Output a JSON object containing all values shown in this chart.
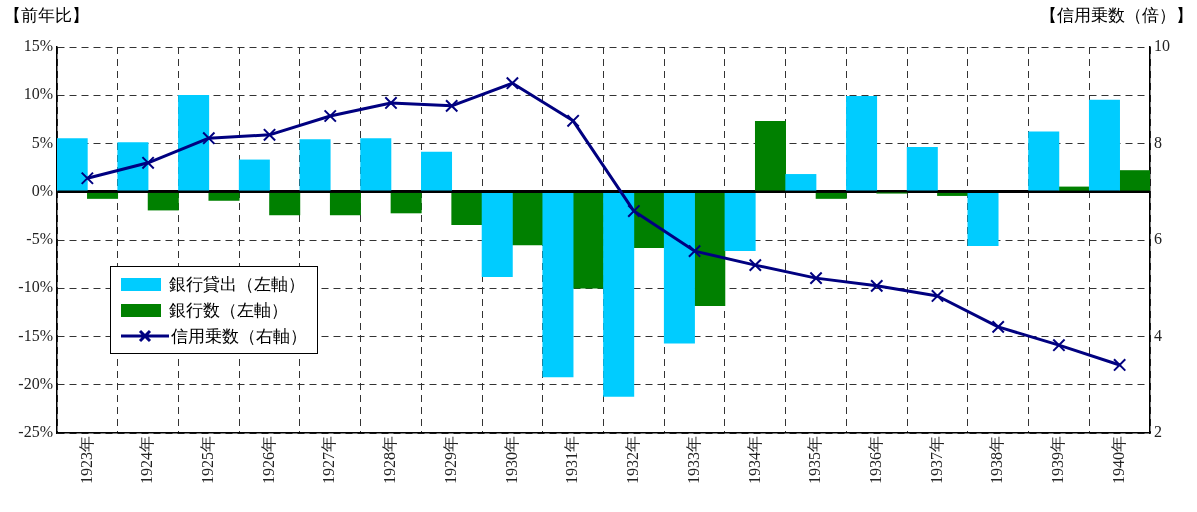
{
  "chart_data": {
    "type": "bar",
    "ylabel": "【前年比】",
    "y2label": "【信用乗数（倍）】",
    "categories": [
      "1923年",
      "1924年",
      "1925年",
      "1926年",
      "1927年",
      "1928年",
      "1929年",
      "1930年",
      "1931年",
      "1932年",
      "1933年",
      "1934年",
      "1935年",
      "1936年",
      "1937年",
      "1938年",
      "1939年",
      "1940年"
    ],
    "series": [
      {
        "name": "銀行貸出（左軸）",
        "color": "#00ccff",
        "values": [
          5.5,
          5.1,
          10.0,
          3.3,
          5.4,
          5.5,
          4.1,
          -8.8,
          -19.2,
          -21.2,
          -15.7,
          -6.1,
          1.8,
          9.9,
          4.6,
          -5.6,
          6.2,
          9.5
        ]
      },
      {
        "name": "銀行数（左軸）",
        "color": "#008000",
        "values": [
          -0.7,
          -1.9,
          -0.9,
          -2.4,
          -2.4,
          -2.2,
          -3.4,
          -5.5,
          -10.0,
          -5.8,
          -11.8,
          7.3,
          -0.7,
          -0.1,
          -0.4,
          null,
          0.5,
          2.2
        ]
      },
      {
        "name": "信用乗数（右軸）",
        "type": "line",
        "axis": "y2",
        "color": "#000080",
        "values": [
          7.28,
          7.6,
          8.11,
          8.18,
          8.57,
          8.84,
          8.78,
          9.25,
          8.47,
          6.6,
          5.77,
          5.48,
          5.21,
          5.05,
          4.84,
          4.2,
          3.82,
          3.41
        ]
      }
    ],
    "ylim": [
      -25,
      15
    ],
    "yticks": [
      {
        "value": -25,
        "label": "-25%"
      },
      {
        "value": -20,
        "label": "-20%"
      },
      {
        "value": -15,
        "label": "-15%"
      },
      {
        "value": -10,
        "label": "-10%"
      },
      {
        "value": -5,
        "label": "-5%"
      },
      {
        "value": 0,
        "label": "0%"
      },
      {
        "value": 5,
        "label": "5%"
      },
      {
        "value": 10,
        "label": "10%"
      },
      {
        "value": 15,
        "label": "15%"
      }
    ],
    "y2lim": [
      2,
      10
    ],
    "y2ticks": [
      2,
      4,
      6,
      8,
      10
    ],
    "grid": true,
    "legend": "bottom left",
    "marker": "cross"
  }
}
